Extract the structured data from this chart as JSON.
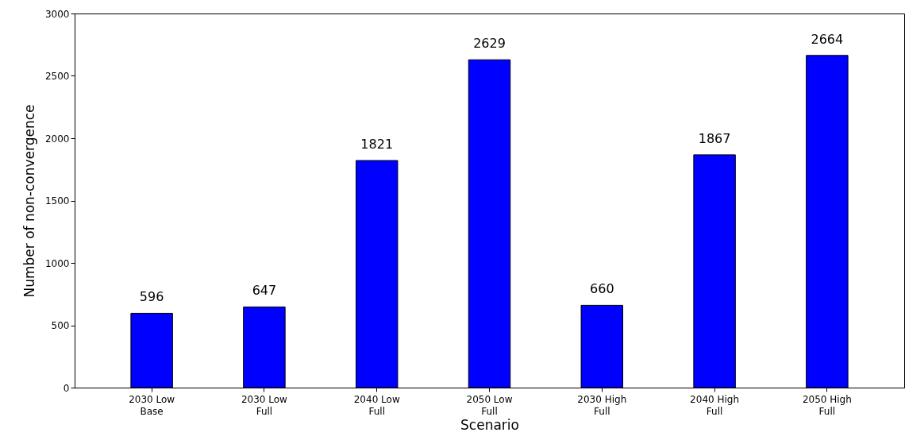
{
  "chart_data": {
    "type": "bar",
    "xlabel": "Scenario",
    "ylabel": "Number of non-convergence",
    "categories": [
      "2030 Low\nBase",
      "2030 Low\nFull",
      "2040 Low\nFull",
      "2050 Low\nFull",
      "2030 High\nFull",
      "2040 High\nFull",
      "2050 High\nFull"
    ],
    "values": [
      596,
      647,
      1821,
      2629,
      660,
      1867,
      2664
    ],
    "color": "#0000ff",
    "ylim": [
      0,
      3000
    ],
    "yticks": [
      0,
      500,
      1000,
      1500,
      2000,
      2500,
      3000
    ],
    "grid": false,
    "data_labels": true
  }
}
